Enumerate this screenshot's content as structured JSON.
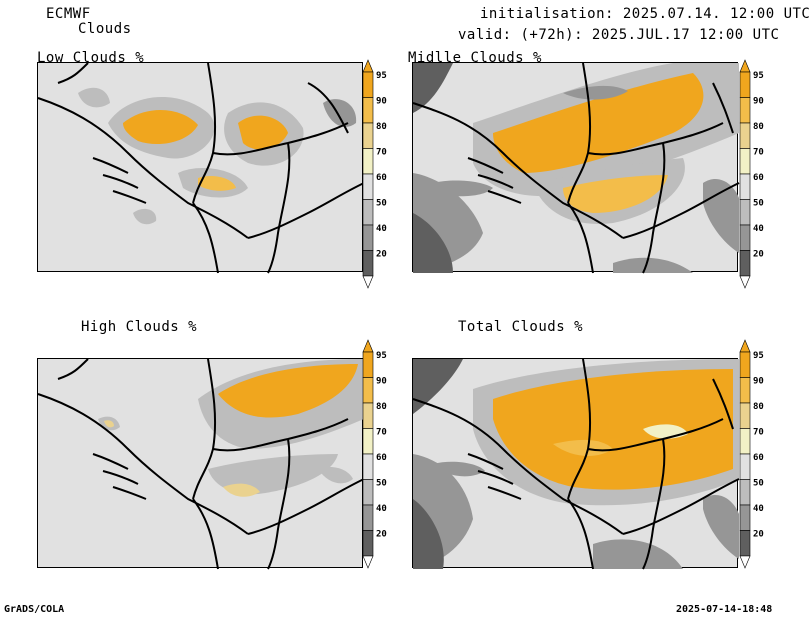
{
  "header": {
    "model": "ECMWF",
    "parameter": "Clouds",
    "initialisation": "initialisation: 2025.07.14. 12:00 UTC",
    "valid": "valid: (+72h): 2025.JUL.17 12:00 UTC"
  },
  "panels": [
    {
      "title": "Low Clouds %"
    },
    {
      "title": "Midlle Clouds %"
    },
    {
      "title": "High Clouds %"
    },
    {
      "title": "Total Clouds %"
    }
  ],
  "colorbar": {
    "labels": [
      "95",
      "90",
      "80",
      "70",
      "60",
      "50",
      "40",
      "20"
    ],
    "colors": {
      "c95": "#f0a61e",
      "c90": "#f3bd4a",
      "c80": "#ead28f",
      "c70": "#f2f1c6",
      "c60": "#e1e1e1",
      "c50": "#bdbdbd",
      "c40": "#969696",
      "c20": "#5f5f5f",
      "c0": "#ffffff"
    }
  },
  "footer": {
    "left": "GrADS/COLA",
    "right": "2025-07-14-18:48"
  }
}
